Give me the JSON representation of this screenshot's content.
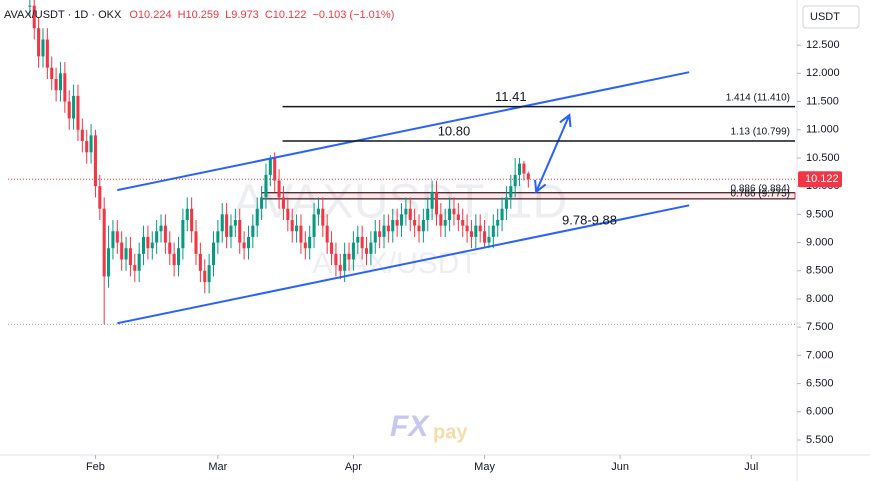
{
  "chart_data": {
    "type": "candlestick",
    "header": {
      "symbol": "AVAX/USDT · 1D · OKX",
      "ohlc": [
        "O10.224",
        "H10.259",
        "L9.973",
        "C10.122",
        "−0.103 (−1.01%)"
      ]
    },
    "currency": "USDT",
    "watermark": "AVAXUSDT, 1D",
    "watermark_sub": "AVAX/USDT",
    "logo": [
      "FX",
      "pay"
    ],
    "up_color": "#089981",
    "down_color": "#f23645",
    "xlim": [
      12,
      192
    ],
    "xticks": [
      {
        "value": 32,
        "label": "Feb"
      },
      {
        "value": 60,
        "label": "Mar"
      },
      {
        "value": 91,
        "label": "Apr"
      },
      {
        "value": 121,
        "label": "May"
      },
      {
        "value": 152,
        "label": "Jun"
      },
      {
        "value": 182,
        "label": "Jul"
      }
    ],
    "ylim": [
      5.234,
      13.3
    ],
    "yticks": [
      {
        "value": 5.5,
        "label": "5.500"
      },
      {
        "value": 6,
        "label": "6.000"
      },
      {
        "value": 6.5,
        "label": "6.500"
      },
      {
        "value": 7,
        "label": "7.000"
      },
      {
        "value": 7.5,
        "label": "7.500"
      },
      {
        "value": 8,
        "label": "8.000"
      },
      {
        "value": 8.5,
        "label": "8.500"
      },
      {
        "value": 9,
        "label": "9.000"
      },
      {
        "value": 9.5,
        "label": "9.500"
      },
      {
        "value": 10,
        "label": "10.000"
      },
      {
        "value": 10.5,
        "label": "10.500"
      },
      {
        "value": 11,
        "label": "11.000"
      },
      {
        "value": 11.5,
        "label": "11.500"
      },
      {
        "value": 12,
        "label": "12.000"
      },
      {
        "value": 12.5,
        "label": "12.500"
      }
    ],
    "x": [
      17,
      18,
      19,
      20,
      21,
      22,
      23,
      24,
      25,
      26,
      27,
      28,
      29,
      30,
      31,
      32,
      33,
      34,
      35,
      36,
      37,
      38,
      39,
      40,
      41,
      42,
      43,
      44,
      45,
      46,
      47,
      48,
      49,
      50,
      51,
      52,
      53,
      54,
      55,
      56,
      57,
      58,
      59,
      60,
      61,
      62,
      63,
      64,
      65,
      66,
      67,
      68,
      69,
      70,
      71,
      72,
      73,
      74,
      75,
      76,
      77,
      78,
      79,
      80,
      81,
      82,
      83,
      84,
      85,
      86,
      87,
      88,
      89,
      90,
      91,
      92,
      93,
      94,
      95,
      96,
      97,
      98,
      99,
      100,
      101,
      102,
      103,
      104,
      105,
      106,
      107,
      108,
      109,
      110,
      111,
      112,
      113,
      114,
      115,
      116,
      117,
      118,
      119,
      120,
      121,
      122,
      123,
      124,
      125,
      126,
      127,
      128,
      129,
      130,
      131
    ],
    "close": [
      13.2,
      12.8,
      12.3,
      12.6,
      12.1,
      11.9,
      11.7,
      12.0,
      11.5,
      11.2,
      11.6,
      11.0,
      10.8,
      10.6,
      10.9,
      10.0,
      9.6,
      8.4,
      8.9,
      9.2,
      9.0,
      8.7,
      8.9,
      8.6,
      8.5,
      8.8,
      9.1,
      8.9,
      9.0,
      9.2,
      9.3,
      9.0,
      8.8,
      8.6,
      8.9,
      9.4,
      9.6,
      9.2,
      8.8,
      8.5,
      8.3,
      8.6,
      9.0,
      9.2,
      9.5,
      9.1,
      9.3,
      9.4,
      9.0,
      8.9,
      9.1,
      9.3,
      9.6,
      9.8,
      10.2,
      10.5,
      10.1,
      9.8,
      9.6,
      9.4,
      9.2,
      9.3,
      9.0,
      8.9,
      9.1,
      9.5,
      9.6,
      9.3,
      9.0,
      8.8,
      8.6,
      8.5,
      8.8,
      8.7,
      9.0,
      9.1,
      8.9,
      8.8,
      9.0,
      9.2,
      9.1,
      9.3,
      9.2,
      9.4,
      9.3,
      9.5,
      9.6,
      9.4,
      9.3,
      9.2,
      9.4,
      9.6,
      9.9,
      9.5,
      9.3,
      9.4,
      9.6,
      9.5,
      9.4,
      9.3,
      9.2,
      9.1,
      9.3,
      9.2,
      9.0,
      9.1,
      9.3,
      9.4,
      9.6,
      9.8,
      10.0,
      10.2,
      10.4,
      10.224,
      10.122
    ],
    "high": [
      13.5,
      13.4,
      13.0,
      12.8,
      12.8,
      12.3,
      12.1,
      12.2,
      12.2,
      11.7,
      11.8,
      11.8,
      11.2,
      11.0,
      11.1,
      11.0,
      10.2,
      9.8,
      9.3,
      9.4,
      9.4,
      9.2,
      9.1,
      9.1,
      8.8,
      9.0,
      9.3,
      9.3,
      9.2,
      9.4,
      9.5,
      9.5,
      9.2,
      9.0,
      9.1,
      9.6,
      9.8,
      9.8,
      9.4,
      9.0,
      8.7,
      8.8,
      9.2,
      9.4,
      9.7,
      9.7,
      9.5,
      9.6,
      9.6,
      9.2,
      9.3,
      9.5,
      9.8,
      10.0,
      10.4,
      10.55,
      10.6,
      10.3,
      10.0,
      9.8,
      9.6,
      9.5,
      9.5,
      9.2,
      9.3,
      9.7,
      9.8,
      9.8,
      9.5,
      9.2,
      9.0,
      8.8,
      9.0,
      9.0,
      9.2,
      9.3,
      9.3,
      9.1,
      9.2,
      9.4,
      9.4,
      9.5,
      9.5,
      9.6,
      9.6,
      9.7,
      9.8,
      9.8,
      9.6,
      9.5,
      9.6,
      9.8,
      10.1,
      10.1,
      9.7,
      9.6,
      9.8,
      9.8,
      9.7,
      9.6,
      9.5,
      9.4,
      9.5,
      9.5,
      9.4,
      9.3,
      9.5,
      9.6,
      9.8,
      10.0,
      10.2,
      10.5,
      10.5,
      10.45,
      10.259
    ],
    "low": [
      13.0,
      12.6,
      12.1,
      12.1,
      11.9,
      11.7,
      11.5,
      11.5,
      11.3,
      11.0,
      11.0,
      10.8,
      10.6,
      10.4,
      10.4,
      9.8,
      9.4,
      7.55,
      8.2,
      8.7,
      8.8,
      8.5,
      8.5,
      8.4,
      8.3,
      8.3,
      8.6,
      8.7,
      8.7,
      8.8,
      9.0,
      8.8,
      8.6,
      8.4,
      8.4,
      8.7,
      9.2,
      9.0,
      8.6,
      8.3,
      8.1,
      8.1,
      8.4,
      8.8,
      9.0,
      8.9,
      8.9,
      9.1,
      8.8,
      8.7,
      8.7,
      8.9,
      9.1,
      9.4,
      9.6,
      10.0,
      9.9,
      9.6,
      9.4,
      9.2,
      9.0,
      9.0,
      8.8,
      8.7,
      8.7,
      8.9,
      9.3,
      9.1,
      8.8,
      8.6,
      8.4,
      8.35,
      8.3,
      8.5,
      8.5,
      8.8,
      8.7,
      8.6,
      8.6,
      8.8,
      8.9,
      8.9,
      9.0,
      9.0,
      9.1,
      9.1,
      9.3,
      9.2,
      9.1,
      9.0,
      9.0,
      9.2,
      9.4,
      9.3,
      9.1,
      9.1,
      9.2,
      9.3,
      9.2,
      9.1,
      9.0,
      8.9,
      8.9,
      9.0,
      8.9,
      8.9,
      8.9,
      9.1,
      9.2,
      9.4,
      9.6,
      9.8,
      10.0,
      10.1,
      9.973
    ],
    "low_line": 7.55,
    "trendlines": [
      {
        "color": "#2962ff",
        "x": [
          37,
          167.8
        ],
        "y": [
          9.93,
          12.02
        ]
      },
      {
        "color": "#2962ff",
        "x": [
          37,
          167.8
        ],
        "y": [
          7.57,
          9.66
        ]
      }
    ],
    "arrow": {
      "color": "#2962ff",
      "x": [
        132.8,
        140.4
      ],
      "y": [
        9.9,
        11.26
      ]
    },
    "levels": [
      {
        "value": 11.41,
        "start": 74.8,
        "label": "11.41",
        "label_x": 127,
        "right_label": "1.414 (11.410)"
      },
      {
        "value": 10.8,
        "start": 74.8,
        "label": "10.80",
        "label_x": 114,
        "right_label": "1.13 (10.799)"
      }
    ],
    "zone": {
      "top": 9.884,
      "bottom": 9.775,
      "start": 70,
      "top_label": "0.886 (9.884)",
      "bottom_label": "0.786 (9.775)",
      "label": "9.78-9.88",
      "label_x": 145
    }
  }
}
